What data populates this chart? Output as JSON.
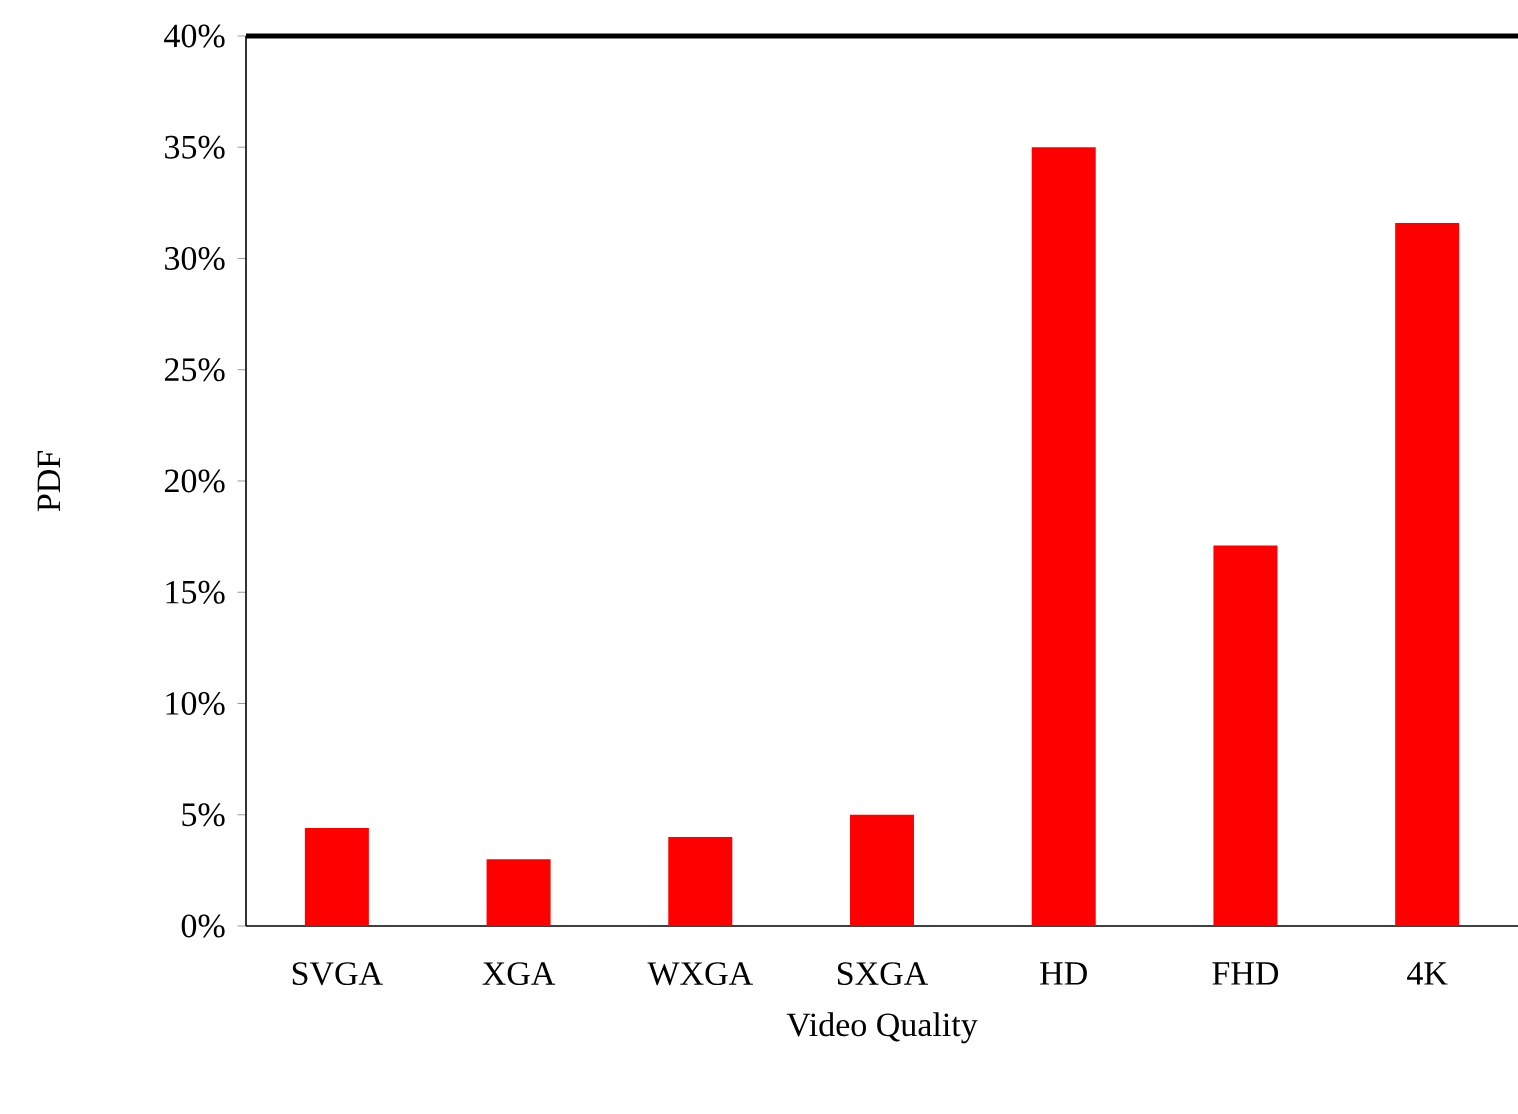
{
  "chart_data": {
    "type": "bar",
    "xlabel": "Video Quality",
    "ylabel": "PDF",
    "categories": [
      "SVGA",
      "XGA",
      "WXGA",
      "SXGA",
      "HD",
      "FHD",
      "4K"
    ],
    "values": [
      4.4,
      3.0,
      4.0,
      5.0,
      35.0,
      17.1,
      31.6
    ],
    "color": "#ff0000",
    "ylim": [
      0,
      40
    ],
    "yticks": [
      {
        "value": 0,
        "label": "0%"
      },
      {
        "value": 5,
        "label": "5%"
      },
      {
        "value": 10,
        "label": "10%"
      },
      {
        "value": 15,
        "label": "15%"
      },
      {
        "value": 20,
        "label": "20%"
      },
      {
        "value": 25,
        "label": "25%"
      },
      {
        "value": 30,
        "label": "30%"
      },
      {
        "value": 35,
        "label": "35%"
      },
      {
        "value": 40,
        "label": "40%"
      }
    ],
    "grid": false
  }
}
